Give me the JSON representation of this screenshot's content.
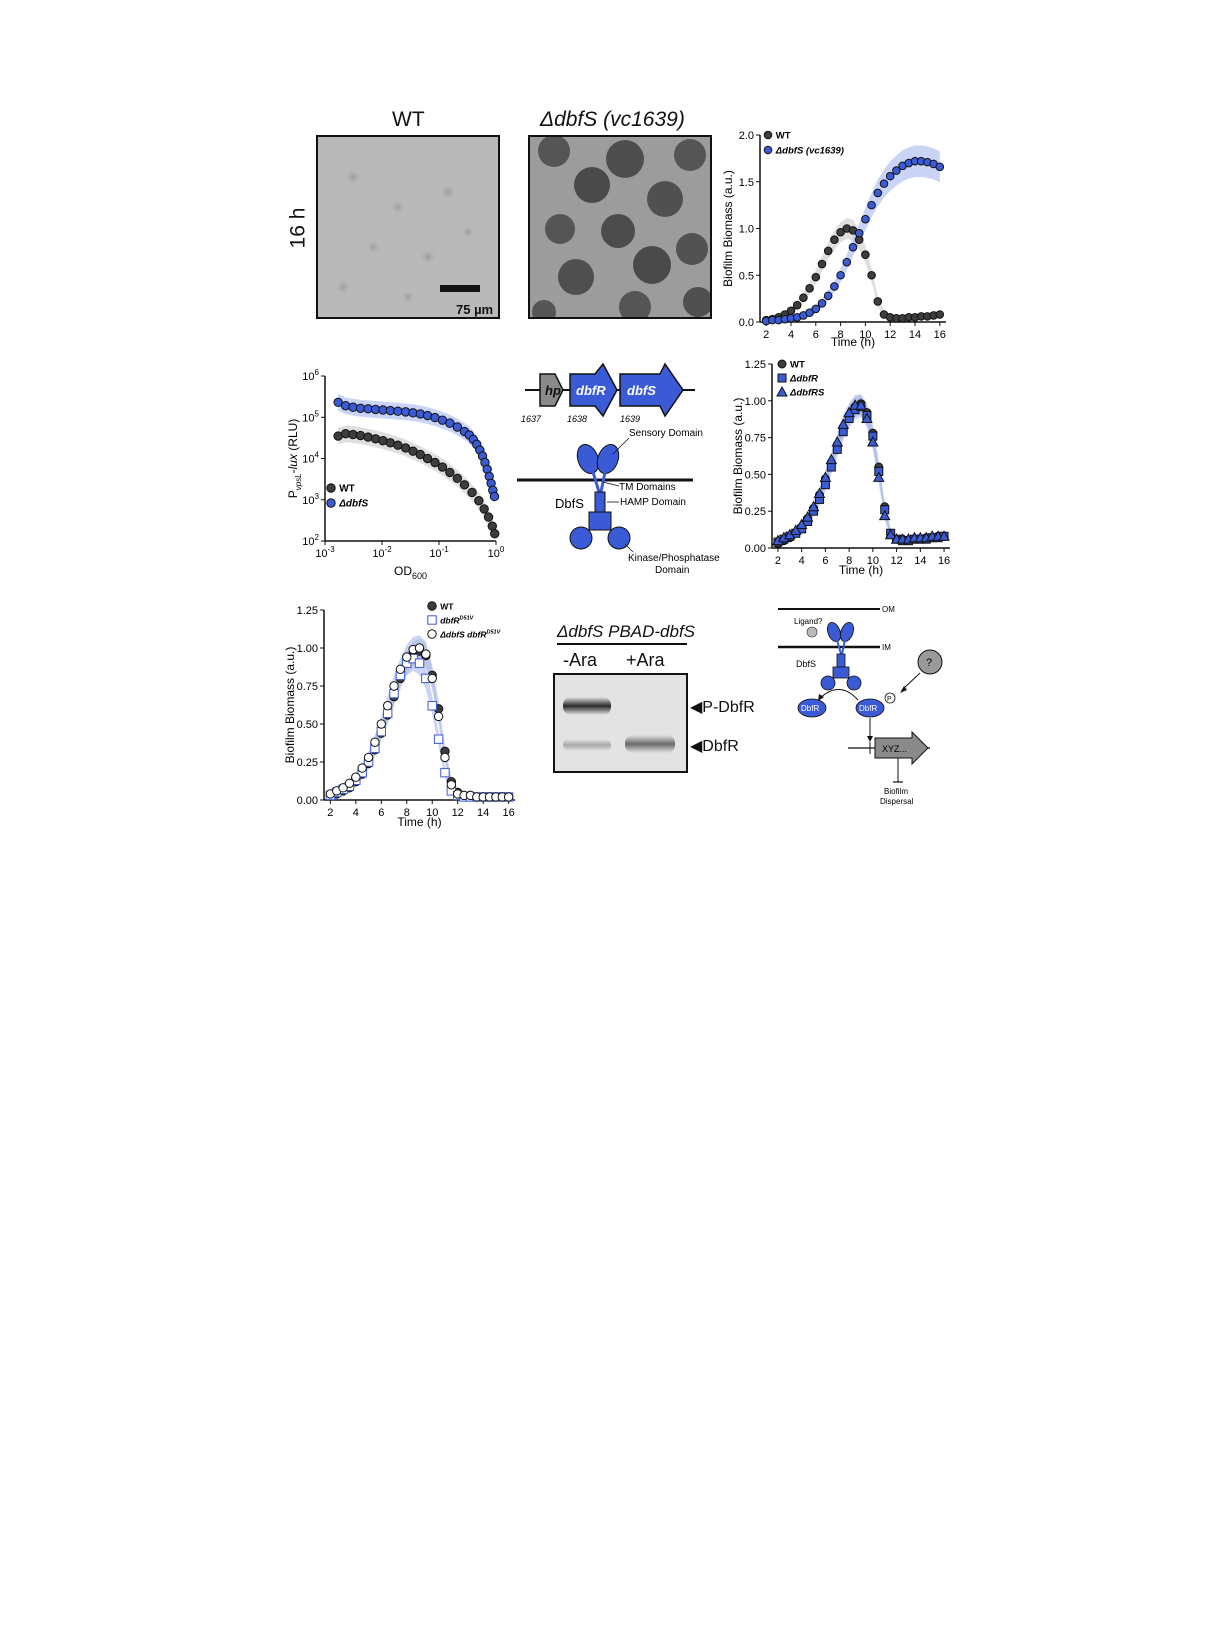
{
  "colors": {
    "wt": "#3d3d3d",
    "mutant": "#3b5bd6",
    "mutant_band": "#9fb0ee",
    "wt_band": "#c4c4c4",
    "gray_gene": "#8a8a8a"
  },
  "panelA": {
    "wt_title": "WT",
    "mut_title": "ΔdbfS (vc1639)",
    "row_label": "16 h",
    "scale_label": "75 µm"
  },
  "chart_data": [
    {
      "type": "scatter",
      "ylabel": "Biofilm Biomass (a.u.)",
      "xlabel": "Time (h)",
      "xlim": [
        1.5,
        16.5
      ],
      "ylim": [
        0,
        2.0
      ],
      "xticks": [
        "2",
        "4",
        "6",
        "8",
        "10",
        "12",
        "14",
        "16"
      ],
      "yticks": [
        "0.0",
        "0.5",
        "1.0",
        "1.5",
        "2.0"
      ],
      "legend": [
        "WT",
        "ΔdbfS (vc1639)"
      ],
      "series": [
        {
          "name": "WT",
          "x": [
            2,
            2.5,
            3,
            3.5,
            4,
            4.5,
            5,
            5.5,
            6,
            6.5,
            7,
            7.5,
            8,
            8.5,
            9,
            9.5,
            10,
            10.5,
            11,
            11.5,
            12,
            12.5,
            13,
            13.5,
            14,
            14.5,
            15,
            15.5,
            16
          ],
          "y": [
            0.02,
            0.03,
            0.05,
            0.08,
            0.12,
            0.18,
            0.26,
            0.36,
            0.48,
            0.62,
            0.76,
            0.88,
            0.96,
            1.0,
            0.98,
            0.88,
            0.72,
            0.5,
            0.22,
            0.08,
            0.05,
            0.04,
            0.04,
            0.05,
            0.05,
            0.06,
            0.06,
            0.07,
            0.08
          ]
        },
        {
          "name": "ΔdbfS (vc1639)",
          "x": [
            2,
            2.5,
            3,
            3.5,
            4,
            4.5,
            5,
            5.5,
            6,
            6.5,
            7,
            7.5,
            8,
            8.5,
            9,
            9.5,
            10,
            10.5,
            11,
            11.5,
            12,
            12.5,
            13,
            13.5,
            14,
            14.5,
            15,
            15.5,
            16
          ],
          "y": [
            0.01,
            0.02,
            0.02,
            0.03,
            0.04,
            0.05,
            0.07,
            0.1,
            0.14,
            0.2,
            0.28,
            0.38,
            0.5,
            0.64,
            0.8,
            0.95,
            1.1,
            1.25,
            1.38,
            1.48,
            1.56,
            1.62,
            1.67,
            1.7,
            1.72,
            1.72,
            1.71,
            1.69,
            1.66
          ]
        }
      ]
    },
    {
      "type": "scatter",
      "ylabel": "P_vpsL-lux (RLU)",
      "xlabel": "OD600",
      "xscale": "log",
      "yscale": "log",
      "xlim": [
        0.001,
        1.0
      ],
      "ylim": [
        100,
        1000000
      ],
      "xticks": [
        "10-3",
        "10-2",
        "10-1",
        "100"
      ],
      "yticks": [
        "102",
        "103",
        "104",
        "105",
        "106"
      ],
      "legend": [
        "WT",
        "ΔdbfS"
      ],
      "series": [
        {
          "name": "WT",
          "x": [
            0.0017,
            0.0023,
            0.0031,
            0.0042,
            0.0057,
            0.0077,
            0.0104,
            0.014,
            0.019,
            0.026,
            0.035,
            0.047,
            0.063,
            0.085,
            0.115,
            0.155,
            0.21,
            0.28,
            0.38,
            0.5,
            0.62,
            0.74,
            0.86,
            0.95
          ],
          "y": [
            35000,
            40000,
            38000,
            36000,
            33000,
            30000,
            27000,
            24000,
            21000,
            18000,
            15000,
            12500,
            10000,
            8000,
            6200,
            4600,
            3300,
            2300,
            1500,
            950,
            600,
            380,
            230,
            150
          ]
        },
        {
          "name": "ΔdbfS",
          "x": [
            0.0017,
            0.0023,
            0.0031,
            0.0042,
            0.0057,
            0.0077,
            0.0104,
            0.014,
            0.019,
            0.026,
            0.035,
            0.047,
            0.063,
            0.085,
            0.115,
            0.155,
            0.21,
            0.28,
            0.34,
            0.4,
            0.46,
            0.52,
            0.58,
            0.64,
            0.7,
            0.76,
            0.82,
            0.88,
            0.94
          ],
          "y": [
            230000,
            190000,
            175000,
            165000,
            160000,
            155000,
            150000,
            145000,
            140000,
            135000,
            128000,
            120000,
            110000,
            98000,
            85000,
            72000,
            58000,
            45000,
            37000,
            29000,
            22000,
            16000,
            11500,
            8000,
            5500,
            3700,
            2500,
            1700,
            1200
          ]
        }
      ]
    },
    {
      "type": "scatter",
      "ylabel": "Biofilm Biomass (a.u.)",
      "xlabel": "Time (h)",
      "xlim": [
        1.5,
        16.5
      ],
      "ylim": [
        0,
        1.25
      ],
      "xticks": [
        "2",
        "4",
        "6",
        "8",
        "10",
        "12",
        "14",
        "16"
      ],
      "yticks": [
        "0.00",
        "0.25",
        "0.50",
        "0.75",
        "1.00",
        "1.25"
      ],
      "legend": [
        "WT",
        "ΔdbfR",
        "ΔdbfRS"
      ],
      "series": [
        {
          "name": "WT",
          "x": [
            2,
            2.5,
            3,
            3.5,
            4,
            4.5,
            5,
            5.5,
            6,
            6.5,
            7,
            7.5,
            8,
            8.5,
            9,
            9.5,
            10,
            10.5,
            11,
            11.5,
            12,
            12.5,
            13,
            13.5,
            14,
            14.5,
            15,
            15.5,
            16
          ],
          "y": [
            0.03,
            0.05,
            0.07,
            0.1,
            0.14,
            0.2,
            0.27,
            0.36,
            0.47,
            0.58,
            0.7,
            0.82,
            0.9,
            0.96,
            0.98,
            0.92,
            0.78,
            0.55,
            0.28,
            0.1,
            0.06,
            0.06,
            0.05,
            0.06,
            0.06,
            0.07,
            0.07,
            0.08,
            0.08
          ]
        },
        {
          "name": "ΔdbfR",
          "x": [
            2,
            2.5,
            3,
            3.5,
            4,
            4.5,
            5,
            5.5,
            6,
            6.5,
            7,
            7.5,
            8,
            8.5,
            9,
            9.5,
            10,
            10.5,
            11,
            11.5,
            12,
            12.5,
            13,
            13.5,
            14,
            14.5,
            15,
            15.5,
            16
          ],
          "y": [
            0.04,
            0.06,
            0.08,
            0.1,
            0.13,
            0.18,
            0.25,
            0.33,
            0.43,
            0.55,
            0.67,
            0.79,
            0.88,
            0.94,
            0.96,
            0.9,
            0.76,
            0.52,
            0.26,
            0.1,
            0.06,
            0.05,
            0.05,
            0.06,
            0.06,
            0.06,
            0.07,
            0.07,
            0.08
          ]
        },
        {
          "name": "ΔdbfRS",
          "x": [
            2,
            2.5,
            3,
            3.5,
            4,
            4.5,
            5,
            5.5,
            6,
            6.5,
            7,
            7.5,
            8,
            8.5,
            9,
            9.5,
            10,
            10.5,
            11,
            11.5,
            12,
            12.5,
            13,
            13.5,
            14,
            14.5,
            15,
            15.5,
            16
          ],
          "y": [
            0.05,
            0.07,
            0.09,
            0.12,
            0.16,
            0.21,
            0.28,
            0.37,
            0.48,
            0.6,
            0.72,
            0.84,
            0.92,
            0.97,
            0.97,
            0.88,
            0.72,
            0.48,
            0.22,
            0.09,
            0.06,
            0.06,
            0.06,
            0.07,
            0.07,
            0.07,
            0.08,
            0.08,
            0.08
          ]
        }
      ]
    },
    {
      "type": "scatter",
      "ylabel": "Biofilm Biomass (a.u.)",
      "xlabel": "Time (h)",
      "xlim": [
        1.5,
        16.5
      ],
      "ylim": [
        0,
        1.25
      ],
      "xticks": [
        "2",
        "4",
        "6",
        "8",
        "10",
        "12",
        "14",
        "16"
      ],
      "yticks": [
        "0.00",
        "0.25",
        "0.50",
        "0.75",
        "1.00",
        "1.25"
      ],
      "legend": [
        "WT",
        "dbfRD51V",
        "ΔdbfS dbfRD51V"
      ],
      "series": [
        {
          "name": "WT",
          "x": [
            2,
            2.5,
            3,
            3.5,
            4,
            4.5,
            5,
            5.5,
            6,
            6.5,
            7,
            7.5,
            8,
            8.5,
            9,
            9.5,
            10,
            10.5,
            11,
            11.5,
            12,
            12.5,
            13,
            13.5,
            14,
            14.5,
            15,
            15.5,
            16
          ],
          "y": [
            0.03,
            0.04,
            0.06,
            0.08,
            0.12,
            0.17,
            0.24,
            0.33,
            0.44,
            0.56,
            0.68,
            0.8,
            0.9,
            0.96,
            0.98,
            0.95,
            0.82,
            0.6,
            0.32,
            0.12,
            0.05,
            0.03,
            0.03,
            0.02,
            0.02,
            0.02,
            0.02,
            0.02,
            0.02
          ]
        },
        {
          "name": "dbfRD51V",
          "x": [
            2,
            2.5,
            3,
            3.5,
            4,
            4.5,
            5,
            5.5,
            6,
            6.5,
            7,
            7.5,
            8,
            8.5,
            9,
            9.5,
            10,
            10.5,
            11,
            11.5,
            12,
            12.5,
            13,
            13.5,
            14,
            14.5,
            15,
            15.5,
            16
          ],
          "y": [
            0.03,
            0.05,
            0.07,
            0.09,
            0.13,
            0.18,
            0.25,
            0.34,
            0.45,
            0.57,
            0.7,
            0.82,
            0.9,
            0.93,
            0.9,
            0.8,
            0.62,
            0.4,
            0.18,
            0.06,
            0.03,
            0.02,
            0.02,
            0.02,
            0.02,
            0.02,
            0.02,
            0.02,
            0.02
          ]
        },
        {
          "name": "ΔdbfS dbfRD51V",
          "x": [
            2,
            2.5,
            3,
            3.5,
            4,
            4.5,
            5,
            5.5,
            6,
            6.5,
            7,
            7.5,
            8,
            8.5,
            9,
            9.5,
            10,
            10.5,
            11,
            11.5,
            12,
            12.5,
            13,
            13.5,
            14,
            14.5,
            15,
            15.5,
            16
          ],
          "y": [
            0.04,
            0.06,
            0.08,
            0.11,
            0.15,
            0.21,
            0.28,
            0.38,
            0.5,
            0.62,
            0.75,
            0.86,
            0.94,
            0.99,
            1.0,
            0.96,
            0.8,
            0.55,
            0.28,
            0.1,
            0.04,
            0.03,
            0.03,
            0.02,
            0.02,
            0.02,
            0.02,
            0.02,
            0.02
          ]
        }
      ]
    }
  ],
  "panelC": {
    "genes": [
      {
        "label": "hp",
        "num": "1637"
      },
      {
        "label": "dbfR",
        "num": "1638"
      },
      {
        "label": "dbfS",
        "num": "1639"
      }
    ],
    "protein": "DbfS",
    "sensory": "Sensory Domain",
    "tm": "TM Domains",
    "hamp": "HAMP Domain",
    "kinase1": "Kinase/Phosphatase",
    "kinase2": "Domain"
  },
  "panelE": {
    "title": "ΔdbfS PBAD-dbfS",
    "lane1": "-Ara",
    "lane2": "+Ara",
    "band1": "◀P-DbfR",
    "band2": "◀DbfR"
  },
  "panelF": {
    "om": "OM",
    "im": "IM",
    "ligand": "Ligand?",
    "protein": "DbfS",
    "q": "?",
    "p": "P",
    "dbfr": "DbfR",
    "xyz": "XYZ...",
    "disp1": "Biofilm",
    "disp2": "Dispersal"
  }
}
